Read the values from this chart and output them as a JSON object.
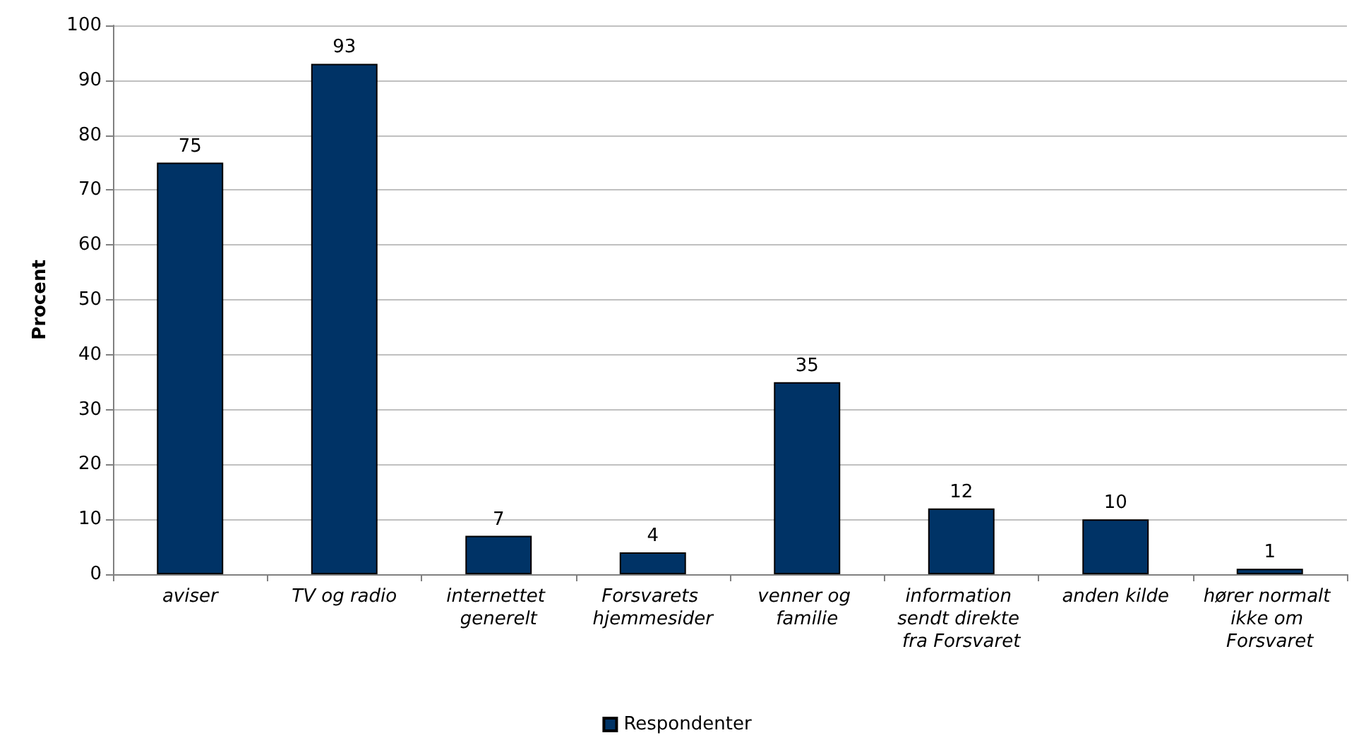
{
  "chart_data": {
    "type": "bar",
    "ylabel": "Procent",
    "categories": [
      "aviser",
      "TV og radio",
      "internettet generelt",
      "Forsvarets hjemmesider",
      "venner og familie",
      "information sendt direkte fra Forsvaret",
      "anden kilde",
      "hører normalt ikke om Forsvaret"
    ],
    "series": [
      {
        "name": "Respondenter",
        "color": "#003366",
        "values": [
          75,
          93,
          7,
          4,
          35,
          12,
          10,
          1
        ]
      }
    ],
    "ylim": [
      0,
      100
    ],
    "yticks": [
      0,
      10,
      20,
      30,
      40,
      50,
      60,
      70,
      80,
      90,
      100
    ],
    "grid": "y",
    "legend": "bottom",
    "data_labels": true
  }
}
